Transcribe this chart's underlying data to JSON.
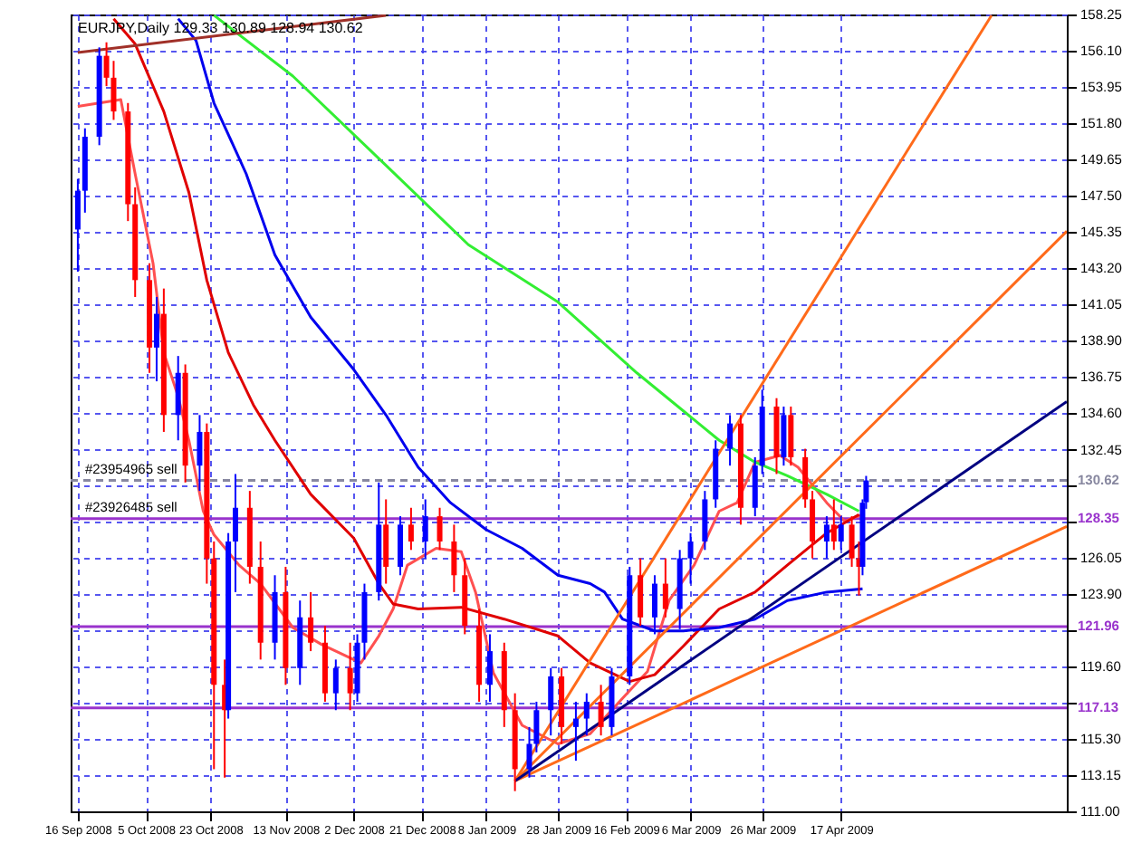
{
  "chart_data": {
    "type": "candlestick",
    "title": "EURJPY,Daily  129.33 130.89 128.94 130.62",
    "x": [
      "2008-09-16",
      "2008-09-18",
      "2008-09-22",
      "2008-09-24",
      "2008-09-26",
      "2008-09-30",
      "2008-10-02",
      "2008-10-06",
      "2008-10-08",
      "2008-10-10",
      "2008-10-14",
      "2008-10-16",
      "2008-10-20",
      "2008-10-22",
      "2008-10-24",
      "2008-10-27",
      "2008-10-28",
      "2008-10-30",
      "2008-11-03",
      "2008-11-06",
      "2008-11-10",
      "2008-11-13",
      "2008-11-17",
      "2008-11-20",
      "2008-11-24",
      "2008-11-27",
      "2008-12-01",
      "2008-12-03",
      "2008-12-05",
      "2008-12-09",
      "2008-12-11",
      "2008-12-15",
      "2008-12-18",
      "2008-12-22",
      "2008-12-26",
      "2008-12-30",
      "2009-01-02",
      "2009-01-06",
      "2009-01-09",
      "2009-01-13",
      "2009-01-16",
      "2009-01-20",
      "2009-01-22",
      "2009-01-26",
      "2009-01-29",
      "2009-02-02",
      "2009-02-05",
      "2009-02-09",
      "2009-02-12",
      "2009-02-17",
      "2009-02-20",
      "2009-02-24",
      "2009-02-27",
      "2009-03-03",
      "2009-03-06",
      "2009-03-10",
      "2009-03-13",
      "2009-03-17",
      "2009-03-20",
      "2009-03-24",
      "2009-03-26",
      "2009-03-30",
      "2009-04-01",
      "2009-04-03",
      "2009-04-07",
      "2009-04-09",
      "2009-04-13",
      "2009-04-15",
      "2009-04-17",
      "2009-04-20",
      "2009-04-22",
      "2009-04-23",
      "2009-04-24"
    ],
    "ohlc": [
      [
        145.5,
        148.5,
        143.0,
        147.8
      ],
      [
        147.8,
        151.5,
        146.5,
        151.0
      ],
      [
        151.0,
        156.3,
        150.5,
        155.8
      ],
      [
        155.8,
        156.6,
        154.0,
        154.5
      ],
      [
        154.5,
        155.5,
        152.0,
        152.5
      ],
      [
        152.5,
        153.0,
        146.0,
        147.0
      ],
      [
        147.0,
        148.0,
        141.5,
        142.5
      ],
      [
        142.5,
        143.5,
        137.0,
        138.5
      ],
      [
        138.5,
        141.5,
        136.5,
        140.5
      ],
      [
        140.5,
        142.0,
        133.5,
        134.5
      ],
      [
        134.5,
        138.0,
        133.0,
        137.0
      ],
      [
        137.0,
        137.5,
        130.5,
        131.5
      ],
      [
        131.5,
        134.5,
        130.0,
        133.5
      ],
      [
        133.5,
        134.0,
        124.5,
        126.0
      ],
      [
        126.0,
        127.0,
        113.5,
        118.5
      ],
      [
        118.5,
        120.0,
        113.0,
        117.0
      ],
      [
        117.0,
        127.5,
        116.5,
        127.0
      ],
      [
        127.0,
        131.0,
        124.0,
        129.0
      ],
      [
        129.0,
        130.0,
        124.5,
        125.5
      ],
      [
        125.5,
        127.0,
        120.0,
        121.0
      ],
      [
        121.0,
        125.0,
        120.0,
        124.0
      ],
      [
        124.0,
        125.5,
        118.5,
        119.5
      ],
      [
        119.5,
        123.5,
        118.5,
        122.5
      ],
      [
        122.5,
        124.0,
        120.5,
        121.0
      ],
      [
        121.0,
        122.0,
        117.5,
        118.0
      ],
      [
        118.0,
        120.0,
        117.0,
        119.5
      ],
      [
        119.5,
        121.0,
        117.0,
        118.0
      ],
      [
        118.0,
        121.5,
        117.5,
        121.0
      ],
      [
        121.0,
        124.5,
        120.0,
        124.0
      ],
      [
        124.0,
        130.5,
        123.5,
        128.0
      ],
      [
        128.0,
        129.5,
        124.5,
        125.5
      ],
      [
        125.5,
        128.5,
        125.0,
        128.0
      ],
      [
        128.0,
        129.0,
        126.5,
        127.0
      ],
      [
        127.0,
        129.5,
        126.0,
        128.5
      ],
      [
        128.5,
        129.0,
        126.5,
        127.0
      ],
      [
        127.0,
        128.0,
        124.0,
        125.0
      ],
      [
        125.0,
        126.0,
        121.5,
        122.0
      ],
      [
        122.0,
        123.0,
        117.5,
        118.5
      ],
      [
        118.5,
        121.5,
        117.5,
        120.5
      ],
      [
        120.5,
        121.0,
        116.0,
        117.0
      ],
      [
        117.0,
        118.0,
        112.2,
        113.5
      ],
      [
        113.5,
        116.0,
        113.0,
        115.0
      ],
      [
        115.0,
        117.5,
        114.5,
        117.0
      ],
      [
        117.0,
        119.5,
        115.5,
        119.0
      ],
      [
        119.0,
        119.5,
        115.0,
        116.0
      ],
      [
        116.0,
        117.5,
        114.0,
        116.5
      ],
      [
        116.5,
        118.0,
        115.5,
        117.5
      ],
      [
        117.5,
        118.5,
        115.5,
        116.0
      ],
      [
        116.0,
        119.5,
        115.5,
        119.0
      ],
      [
        119.0,
        125.5,
        118.5,
        125.0
      ],
      [
        125.0,
        126.0,
        122.0,
        122.5
      ],
      [
        122.5,
        125.0,
        121.5,
        124.5
      ],
      [
        124.5,
        126.0,
        122.5,
        123.0
      ],
      [
        123.0,
        126.5,
        121.8,
        126.0
      ],
      [
        126.0,
        127.5,
        124.5,
        127.0
      ],
      [
        127.0,
        130.0,
        126.5,
        129.5
      ],
      [
        129.5,
        133.0,
        129.0,
        132.5
      ],
      [
        132.5,
        134.5,
        131.5,
        134.0
      ],
      [
        134.0,
        134.5,
        128.0,
        129.0
      ],
      [
        129.0,
        132.0,
        128.5,
        131.5
      ],
      [
        131.5,
        136.0,
        131.0,
        135.0
      ],
      [
        135.0,
        135.5,
        131.0,
        132.0
      ],
      [
        132.0,
        135.0,
        131.5,
        134.5
      ],
      [
        134.5,
        135.0,
        131.5,
        132.0
      ],
      [
        132.0,
        132.5,
        129.0,
        129.5
      ],
      [
        129.5,
        130.0,
        126.0,
        127.0
      ],
      [
        127.0,
        128.5,
        126.0,
        128.0
      ],
      [
        128.0,
        129.5,
        126.5,
        127.0
      ],
      [
        127.0,
        128.5,
        126.5,
        128.0
      ],
      [
        128.0,
        128.5,
        125.5,
        126.0
      ],
      [
        126.0,
        127.0,
        123.8,
        125.5
      ],
      [
        125.5,
        129.5,
        125.0,
        129.3
      ],
      [
        129.33,
        130.89,
        128.94,
        130.62
      ]
    ],
    "colors": [
      "#0000ff",
      "#0000ff",
      "#0000ff",
      "#ff0000",
      "#ff0000",
      "#ff0000",
      "#ff0000",
      "#ff0000",
      "#0000ff",
      "#ff0000",
      "#0000ff",
      "#ff0000",
      "#0000ff",
      "#ff0000",
      "#ff0000",
      "#ff0000",
      "#0000ff",
      "#0000ff",
      "#ff0000",
      "#ff0000",
      "#0000ff",
      "#ff0000",
      "#0000ff",
      "#ff0000",
      "#ff0000",
      "#0000ff",
      "#ff0000",
      "#0000ff",
      "#0000ff",
      "#0000ff",
      "#ff0000",
      "#0000ff",
      "#ff0000",
      "#0000ff",
      "#ff0000",
      "#ff0000",
      "#ff0000",
      "#ff0000",
      "#0000ff",
      "#ff0000",
      "#ff0000",
      "#0000ff",
      "#0000ff",
      "#0000ff",
      "#ff0000",
      "#0000ff",
      "#0000ff",
      "#ff0000",
      "#0000ff",
      "#0000ff",
      "#ff0000",
      "#0000ff",
      "#ff0000",
      "#0000ff",
      "#0000ff",
      "#0000ff",
      "#0000ff",
      "#0000ff",
      "#ff0000",
      "#0000ff",
      "#0000ff",
      "#ff0000",
      "#0000ff",
      "#ff0000",
      "#ff0000",
      "#ff0000",
      "#0000ff",
      "#ff0000",
      "#0000ff",
      "#ff0000",
      "#ff0000",
      "#0000ff",
      "#0000ff"
    ],
    "series": [
      {
        "type": "line",
        "color": "#ff5050",
        "x": [
          "2008-09-16",
          "2008-09-28",
          "2008-10-02",
          "2008-10-07",
          "2008-10-10",
          "2008-10-14",
          "2008-10-17",
          "2008-10-21",
          "2008-10-24",
          "2008-10-31",
          "2008-11-06",
          "2008-11-15",
          "2008-11-23",
          "2008-12-04",
          "2008-12-09",
          "2008-12-13",
          "2008-12-17",
          "2008-12-25",
          "2009-01-01",
          "2009-01-05",
          "2009-01-10",
          "2009-01-18",
          "2009-01-28",
          "2009-02-06",
          "2009-02-15",
          "2009-02-22",
          "2009-02-28",
          "2009-03-07",
          "2009-03-14",
          "2009-03-19",
          "2009-03-24",
          "2009-03-31",
          "2009-04-05",
          "2009-04-13",
          "2009-04-18",
          "2009-04-23"
        ],
        "values": [
          152.8,
          153.2,
          148.8,
          143.5,
          138.2,
          135.6,
          133.0,
          128.8,
          127.4,
          125.6,
          124.5,
          121.9,
          120.9,
          119.8,
          121.4,
          123.0,
          125.6,
          126.6,
          126.4,
          124.0,
          119.2,
          116.1,
          115.0,
          115.6,
          117.7,
          119.3,
          123.5,
          125.6,
          128.8,
          129.3,
          131.7,
          132.1,
          131.4,
          129.3,
          128.2,
          128.6
        ]
      },
      {
        "type": "line",
        "color": "#e00000",
        "x": [
          "2008-09-26",
          "2008-10-02",
          "2008-10-10",
          "2008-10-17",
          "2008-10-22",
          "2008-10-28",
          "2008-11-04",
          "2008-11-10",
          "2008-11-20",
          "2008-12-02",
          "2008-12-09",
          "2008-12-13",
          "2008-12-20",
          "2009-01-01",
          "2009-01-13",
          "2009-01-28",
          "2009-02-06",
          "2009-02-17",
          "2009-02-24",
          "2009-03-04",
          "2009-03-14",
          "2009-03-24",
          "2009-04-02",
          "2009-04-13",
          "2009-04-22"
        ],
        "values": [
          158.0,
          156.5,
          152.5,
          147.7,
          142.5,
          138.2,
          135.1,
          133.0,
          129.8,
          127.2,
          124.5,
          123.3,
          123.0,
          123.1,
          122.4,
          121.4,
          119.8,
          118.7,
          119.1,
          120.8,
          123.0,
          124.0,
          125.6,
          127.5,
          128.6
        ]
      },
      {
        "type": "line",
        "color": "#0000ee",
        "x": [
          "2008-10-14",
          "2008-10-19",
          "2008-10-24",
          "2008-11-02",
          "2008-11-10",
          "2008-11-20",
          "2008-12-02",
          "2008-12-11",
          "2008-12-20",
          "2008-12-29",
          "2009-01-08",
          "2009-01-18",
          "2009-01-28",
          "2009-02-06",
          "2009-02-10",
          "2009-02-15",
          "2009-02-24",
          "2009-03-04",
          "2009-03-14",
          "2009-03-24",
          "2009-04-02",
          "2009-04-13",
          "2009-04-23"
        ],
        "values": [
          158.0,
          156.7,
          153.0,
          148.8,
          144.0,
          140.3,
          137.2,
          134.5,
          131.4,
          129.3,
          127.7,
          126.6,
          125.0,
          124.5,
          124.0,
          122.4,
          121.7,
          121.7,
          121.9,
          122.4,
          123.5,
          124.0,
          124.2
        ]
      },
      {
        "type": "line",
        "color": "#33ee33",
        "x": [
          "2008-10-24",
          "2008-11-15",
          "2008-12-11",
          "2009-01-03",
          "2009-01-28",
          "2009-02-19",
          "2009-03-14",
          "2009-03-24",
          "2009-04-02",
          "2009-04-13",
          "2009-04-22"
        ],
        "values": [
          158.2,
          154.6,
          149.3,
          144.6,
          141.2,
          137.0,
          133.0,
          131.7,
          130.9,
          129.8,
          128.8
        ]
      },
      {
        "type": "line",
        "color": "#a03028",
        "x": [
          "2008-09-16",
          "2008-12-11"
        ],
        "values": [
          156.0,
          158.2
        ]
      },
      {
        "type": "line",
        "color": "#ff6a1a",
        "x": [
          "2009-01-16",
          "2009-05-29"
        ],
        "values": [
          112.8,
          158.2
        ]
      },
      {
        "type": "line",
        "color": "#ff6a1a",
        "x": [
          "2009-01-16",
          "2009-06-19"
        ],
        "values": [
          112.8,
          145.4
        ]
      },
      {
        "type": "line",
        "color": "#ff6a1a",
        "x": [
          "2009-01-16",
          "2009-06-19"
        ],
        "values": [
          112.8,
          127.9
        ]
      },
      {
        "type": "line",
        "color": "#000080",
        "x": [
          "2009-01-16",
          "2009-06-19"
        ],
        "values": [
          112.8,
          135.3
        ]
      }
    ],
    "xlim": [
      "2008-09-14",
      "2009-06-19"
    ],
    "xticks": [
      {
        "value": "2008-09-16",
        "label": "16 Sep 2008"
      },
      {
        "value": "2008-10-05",
        "label": "5 Oct 2008"
      },
      {
        "value": "2008-10-23",
        "label": "23 Oct 2008"
      },
      {
        "value": "2008-11-13",
        "label": "13 Nov 2008"
      },
      {
        "value": "2008-12-02",
        "label": "2 Dec 2008"
      },
      {
        "value": "2008-12-21",
        "label": "21 Dec 2008"
      },
      {
        "value": "2009-01-08",
        "label": "8 Jan 2009"
      },
      {
        "value": "2009-01-28",
        "label": "28 Jan 2009"
      },
      {
        "value": "2009-02-16",
        "label": "16 Feb 2009"
      },
      {
        "value": "2009-03-06",
        "label": "6 Mar 2009"
      },
      {
        "value": "2009-03-26",
        "label": "26 Mar 2009"
      },
      {
        "value": "2009-04-17",
        "label": "17 Apr 2009"
      }
    ],
    "ylim": [
      111.0,
      158.25
    ],
    "yticks": [
      {
        "value": 111.0,
        "label": "111.00"
      },
      {
        "value": 113.15,
        "label": "113.15"
      },
      {
        "value": 115.3,
        "label": "115.30"
      },
      {
        "value": 117.45,
        "label": null
      },
      {
        "value": 119.6,
        "label": "119.60"
      },
      {
        "value": 121.75,
        "label": null
      },
      {
        "value": 123.9,
        "label": "123.90"
      },
      {
        "value": 126.05,
        "label": "126.05"
      },
      {
        "value": 128.2,
        "label": null
      },
      {
        "value": 130.3,
        "label": null
      },
      {
        "value": 132.45,
        "label": "132.45"
      },
      {
        "value": 134.6,
        "label": "134.60"
      },
      {
        "value": 136.75,
        "label": "136.75"
      },
      {
        "value": 138.9,
        "label": "138.90"
      },
      {
        "value": 141.05,
        "label": "141.05"
      },
      {
        "value": 143.2,
        "label": "143.20"
      },
      {
        "value": 145.35,
        "label": "145.35"
      },
      {
        "value": 147.5,
        "label": "147.50"
      },
      {
        "value": 149.65,
        "label": "149.65"
      },
      {
        "value": 151.8,
        "label": "151.80"
      },
      {
        "value": 153.95,
        "label": "153.95"
      },
      {
        "value": 156.1,
        "label": "156.10"
      },
      {
        "value": 158.25,
        "label": "158.25"
      }
    ],
    "grid": true,
    "ref_lines": [
      {
        "axis": "y",
        "value": 130.62,
        "label": "130.62",
        "color": "#8888a0",
        "line_style": "dashed"
      },
      {
        "axis": "y",
        "value": 128.35,
        "label": "128.35",
        "color": "#9933cc",
        "line_style": "solid"
      },
      {
        "axis": "y",
        "value": 121.96,
        "label": "121.96",
        "color": "#9933cc",
        "line_style": "solid"
      },
      {
        "axis": "y",
        "value": 117.13,
        "label": "117.13",
        "color": "#9933cc",
        "line_style": "solid"
      }
    ],
    "annotations": [
      {
        "text": "#23954965 sell",
        "x": "2008-09-16",
        "y": 130.62
      },
      {
        "text": "#23926485 sell",
        "x": "2008-09-16",
        "y": 128.35
      }
    ]
  }
}
